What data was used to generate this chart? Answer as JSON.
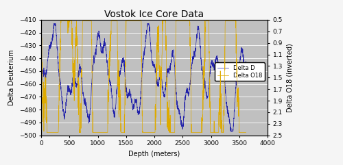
{
  "title": "Vostok Ice Core Data",
  "xlabel": "Depth (meters)",
  "ylabel_left": "Delta Deuterium",
  "ylabel_right": "Delta O18 (inverted)",
  "xlim": [
    0,
    4000
  ],
  "ylim_left": [
    -500,
    -410
  ],
  "ylim_right": [
    2.5,
    0.5
  ],
  "yticks_left": [
    -410,
    -420,
    -430,
    -440,
    -450,
    -460,
    -470,
    -480,
    -490,
    -500
  ],
  "yticks_right": [
    0.5,
    0.7,
    0.9,
    1.1,
    1.3,
    1.5,
    1.7,
    1.9,
    2.1,
    2.3,
    2.5
  ],
  "xticks": [
    0,
    500,
    1000,
    1500,
    2000,
    2500,
    3000,
    3500,
    4000
  ],
  "color_deltaD": "#2222AA",
  "color_deltaO18": "#DDAA00",
  "legend_labels": [
    "Delta D",
    "Delta O18"
  ],
  "bg_color": "#C0C0C0",
  "fig_bg_color": "#F5F5F5",
  "title_fontsize": 10,
  "label_fontsize": 7,
  "tick_fontsize": 6.5
}
